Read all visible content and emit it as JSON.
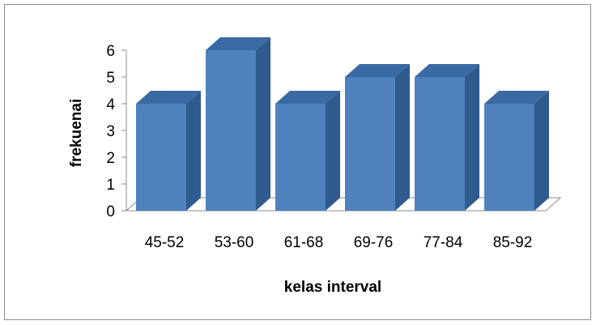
{
  "chart_data": {
    "type": "bar",
    "categories": [
      "45-52",
      "53-60",
      "61-68",
      "69-76",
      "77-84",
      "85-92"
    ],
    "values": [
      4,
      6,
      4,
      5,
      5,
      4
    ],
    "title": "",
    "xlabel": "kelas interval",
    "ylabel": "frekuenai",
    "ylim": [
      0,
      6
    ],
    "yticks": [
      0,
      1,
      2,
      3,
      4,
      5,
      6
    ],
    "grid": false,
    "legend": "none",
    "colors": {
      "front": "#4f81bd",
      "side": "#2f5b8e",
      "top": "#3a6aa3"
    }
  }
}
